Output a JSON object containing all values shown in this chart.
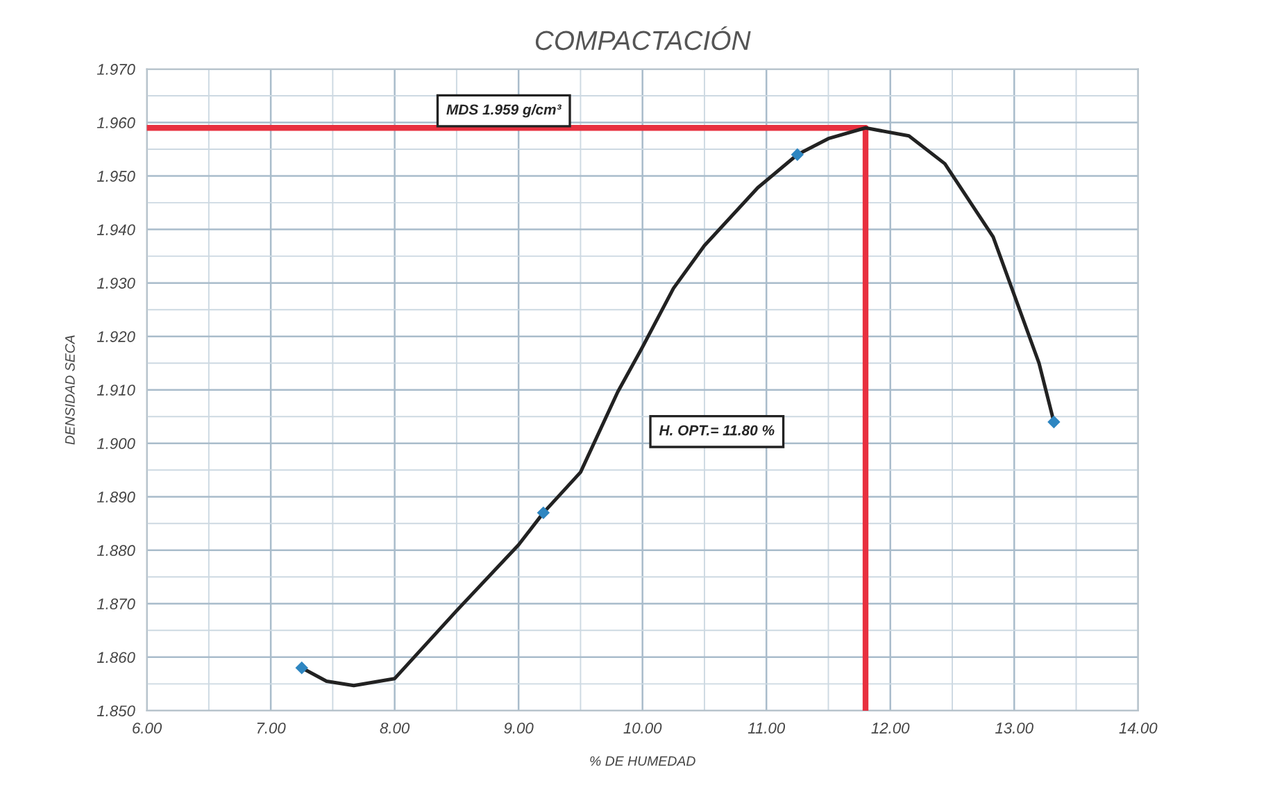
{
  "chart_data": {
    "type": "line",
    "title": "COMPACTACIÓN",
    "xlabel": "% DE HUMEDAD",
    "ylabel": "DENSIDAD SECA",
    "xlim": [
      6,
      14
    ],
    "xticks": [
      {
        "value": 6,
        "label": "6.00"
      },
      {
        "value": 7,
        "label": "7.00"
      },
      {
        "value": 8,
        "label": "8.00"
      },
      {
        "value": 9,
        "label": "9.00"
      },
      {
        "value": 10,
        "label": "10.00"
      },
      {
        "value": 11,
        "label": "11.00"
      },
      {
        "value": 12,
        "label": "12.00"
      },
      {
        "value": 13,
        "label": "13.00"
      },
      {
        "value": 14,
        "label": "14.00"
      }
    ],
    "ylim": [
      1.85,
      1.97
    ],
    "yticks": [
      {
        "value": 1.85,
        "label": "1.850"
      },
      {
        "value": 1.86,
        "label": "1.860"
      },
      {
        "value": 1.87,
        "label": "1.870"
      },
      {
        "value": 1.88,
        "label": "1.880"
      },
      {
        "value": 1.89,
        "label": "1.890"
      },
      {
        "value": 1.9,
        "label": "1.900"
      },
      {
        "value": 1.91,
        "label": "1.910"
      },
      {
        "value": 1.92,
        "label": "1.920"
      },
      {
        "value": 1.93,
        "label": "1.930"
      },
      {
        "value": 1.94,
        "label": "1.940"
      },
      {
        "value": 1.95,
        "label": "1.950"
      },
      {
        "value": 1.96,
        "label": "1.960"
      },
      {
        "value": 1.97,
        "label": "1.970"
      }
    ],
    "grid": true,
    "legend": false,
    "series": [
      {
        "color": "#222222",
        "marker": "none",
        "line_style": "solid",
        "x": [
          7.25,
          7.45,
          7.67,
          8.0,
          8.5,
          9.0,
          9.2,
          9.5,
          9.8,
          10.0,
          10.25,
          10.5,
          10.93,
          11.25,
          11.5,
          11.8,
          12.15,
          12.44,
          12.83,
          13.2,
          13.32
        ],
        "values": [
          1.858,
          1.8555,
          1.8547,
          1.856,
          1.8687,
          1.881,
          1.887,
          1.8946,
          1.9096,
          1.918,
          1.929,
          1.937,
          1.9478,
          1.954,
          1.957,
          1.959,
          1.9575,
          1.9523,
          1.9386,
          1.915,
          1.904
        ]
      },
      {
        "type": "scatter",
        "color": "#2e86c1",
        "marker": "diamond",
        "x": [
          7.25,
          9.2,
          11.25,
          13.32
        ],
        "values": [
          1.858,
          1.887,
          1.954,
          1.904
        ]
      },
      {
        "color": "#e8303f",
        "marker": "none",
        "line_style": "solid",
        "x": [
          6,
          11.8
        ],
        "values": [
          1.959,
          1.959
        ]
      },
      {
        "color": "#e8303f",
        "marker": "none",
        "line_style": "solid",
        "x": [
          11.8,
          11.8
        ],
        "values": [
          1.85,
          1.959
        ]
      }
    ],
    "annotations": [
      "MDS 1.959 g/cm³",
      "H. OPT.= 11.80 %"
    ]
  }
}
